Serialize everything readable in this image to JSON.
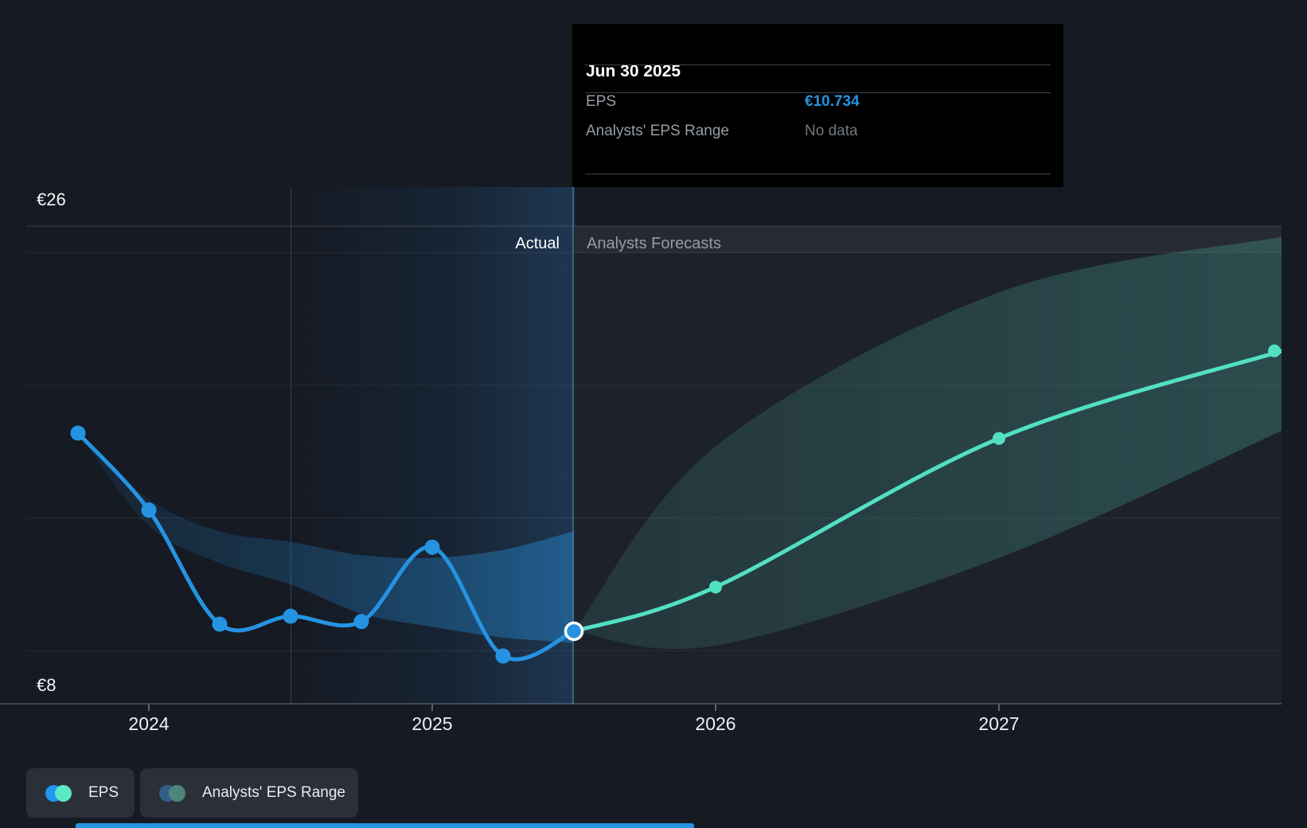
{
  "tooltip": {
    "title": "Jun 30 2025",
    "rows": [
      {
        "label": "EPS",
        "value": "€10.734",
        "value_color": "#2593e2",
        "bold": true
      },
      {
        "label": "Analysts' EPS Range",
        "value": "No data",
        "value_color": "#71787f",
        "bold": false
      }
    ]
  },
  "zones": {
    "actual_label": "Actual",
    "forecast_label": "Analysts Forecasts"
  },
  "legend": [
    {
      "label": "EPS",
      "dot_colors": [
        "#2196f3",
        "#5ce8c5"
      ]
    },
    {
      "label": "Analysts' EPS Range",
      "dot_colors": [
        "#30608a",
        "#4c8679"
      ]
    }
  ],
  "colors": {
    "background": "#151a23",
    "forecast_background": "#1c212a",
    "accent_blue": "#2593e2",
    "accent_teal": "#52e0c4",
    "divider": "#41607c",
    "gridline": "rgba(255,255,255,0.07)",
    "axis_line": "rgba(255,255,255,0.25)"
  },
  "chart_data": {
    "type": "line",
    "title": "EPS actual vs analysts forecast",
    "currency": "EUR",
    "ylim": [
      8,
      26
    ],
    "y_axis_labels": {
      "top": "€26",
      "bottom": "€8"
    },
    "gridline_values": [
      25,
      20,
      15,
      10
    ],
    "x_ticks": [
      {
        "label": "2024",
        "t": 0
      },
      {
        "label": "2025",
        "t": 1
      },
      {
        "label": "2026",
        "t": 2
      },
      {
        "label": "2027",
        "t": 3
      }
    ],
    "divider_t": 1.5,
    "series": [
      {
        "name": "EPS (actual)",
        "color": "#2593e2",
        "dot_radius": 9.5,
        "points": [
          {
            "date": "Sep 30 2023",
            "t": -0.25,
            "value": 18.2
          },
          {
            "date": "Dec 31 2023",
            "t": 0,
            "value": 15.3
          },
          {
            "date": "Mar 31 2024",
            "t": 0.25,
            "value": 11.0
          },
          {
            "date": "Jun 30 2024",
            "t": 0.5,
            "value": 11.3
          },
          {
            "date": "Sep 30 2024",
            "t": 0.75,
            "value": 11.1
          },
          {
            "date": "Dec 31 2024",
            "t": 1.0,
            "value": 13.9
          },
          {
            "date": "Mar 31 2025",
            "t": 1.25,
            "value": 9.8
          },
          {
            "date": "Jun 30 2025",
            "t": 1.5,
            "value": 10.734,
            "current": true
          }
        ]
      },
      {
        "name": "EPS (analysts forecast)",
        "color": "#52e0c4",
        "dot_radius": 8,
        "points": [
          {
            "date": "Jun 30 2025",
            "t": 1.5,
            "value": 10.734,
            "dot": false
          },
          {
            "date": "Dec 31 2025",
            "t": 2.0,
            "value": 12.4
          },
          {
            "date": "Dec 31 2026",
            "t": 3.0,
            "value": 18.0
          },
          {
            "date": "Dec 31 2027",
            "t": 4.0,
            "value": 21.3
          }
        ]
      }
    ],
    "ranges": [
      {
        "name": "Analysts' EPS Range (past)",
        "gradient": [
          "rgba(37,147,226,0.08)",
          "rgba(37,147,226,0.42)"
        ],
        "points": [
          {
            "t": -0.25,
            "low": 18.2,
            "high": 18.2
          },
          {
            "t": 0,
            "low": 14.7,
            "high": 15.7
          },
          {
            "t": 0.25,
            "low": 13.3,
            "high": 14.5
          },
          {
            "t": 0.5,
            "low": 12.5,
            "high": 14.1
          },
          {
            "t": 0.75,
            "low": 11.4,
            "high": 13.6
          },
          {
            "t": 1.0,
            "low": 10.9,
            "high": 13.5
          },
          {
            "t": 1.25,
            "low": 10.5,
            "high": 13.8
          },
          {
            "t": 1.5,
            "low": 10.3,
            "high": 14.5
          }
        ]
      },
      {
        "name": "Analysts' EPS Range (forecast)",
        "gradient": [
          "rgba(86,197,179,0.13)",
          "rgba(86,197,179,0.26)"
        ],
        "points": [
          {
            "t": 1.5,
            "low": 10.734,
            "high": 10.734
          },
          {
            "t": 2.0,
            "low": 10.2,
            "high": 17.7
          },
          {
            "t": 3.0,
            "low": 13.5,
            "high": 23.5
          },
          {
            "t": 4.0,
            "low": 18.3,
            "high": 25.6
          }
        ]
      }
    ]
  }
}
